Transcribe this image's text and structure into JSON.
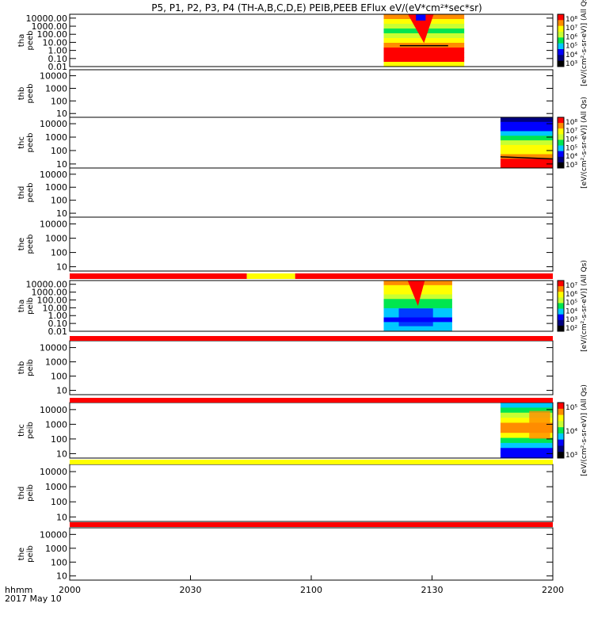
{
  "chart_data": {
    "type": "heatmap",
    "title": "P5, P1, P2, P3, P4 (TH-A,B,C,D,E) PEIB,PEEB EFlux eV/(eV*cm²*sec*sr)",
    "xaxis": {
      "range": [
        "2000",
        "2200"
      ],
      "ticks": [
        {
          "v": 0,
          "label": "2000"
        },
        {
          "v": 30,
          "label": "2030"
        },
        {
          "v": 60,
          "label": "2100"
        },
        {
          "v": 90,
          "label": "2130"
        },
        {
          "v": 120,
          "label": "2200"
        }
      ],
      "label": "hhmm",
      "date": "2017 May 10"
    },
    "panels": [
      {
        "id": "tha-peeb",
        "line1": "tha",
        "line2": "peeb",
        "ticks": [
          "10000.00",
          "1000.00",
          "100.00",
          "10.00",
          "1.00",
          "0.10",
          "0.01"
        ],
        "yrange": [
          0.01,
          30000
        ],
        "data_span": [
          78,
          98
        ],
        "colorbar": {
          "labels": [
            "10⁸",
            "10⁷",
            "10⁶",
            "10⁵",
            "10⁴",
            "10³"
          ],
          "unit": "[eV/(cm²-s-sr-eV)] (All Qs)"
        }
      },
      {
        "id": "thb-peeb",
        "line1": "thb",
        "line2": "peeb",
        "ticks": [
          "10000",
          "1000",
          "100",
          "10"
        ],
        "yrange": [
          5,
          30000
        ],
        "data_span": null
      },
      {
        "id": "thc-peeb",
        "line1": "thc",
        "line2": "peeb",
        "ticks": [
          "10000",
          "1000",
          "100",
          "10"
        ],
        "yrange": [
          5,
          30000
        ],
        "data_span": [
          107,
          120
        ],
        "colorbar": {
          "labels": [
            "10⁸",
            "10⁷",
            "10⁶",
            "10⁵",
            "10⁴",
            "10³"
          ],
          "unit": "[eV/(cm²-s-sr-eV)] (All Qs)"
        }
      },
      {
        "id": "thd-peeb",
        "line1": "thd",
        "line2": "peeb",
        "ticks": [
          "10000",
          "1000",
          "100",
          "10"
        ],
        "yrange": [
          5,
          30000
        ],
        "data_span": null
      },
      {
        "id": "the-peeb",
        "line1": "the",
        "line2": "peeb",
        "ticks": [
          "10000",
          "1000",
          "100",
          "10"
        ],
        "yrange": [
          5,
          30000
        ],
        "data_span": null
      },
      {
        "id": "tha-peib",
        "line1": "tha",
        "line2": "peib",
        "ticks": [
          "10000.00",
          "1000.00",
          "100.00",
          "10.00",
          "1.00",
          "0.10",
          "0.01"
        ],
        "yrange": [
          0.01,
          30000
        ],
        "data_span": [
          78,
          95
        ],
        "colorbar": {
          "labels": [
            "10⁷",
            "10⁶",
            "10⁵",
            "10⁴",
            "10³",
            "10²"
          ],
          "unit": "[eV/(cm²-s-sr-eV)] (All Qs)"
        }
      },
      {
        "id": "thb-peib",
        "line1": "thb",
        "line2": "peib",
        "ticks": [
          "10000",
          "1000",
          "100",
          "10"
        ],
        "yrange": [
          5,
          30000
        ],
        "data_span": null
      },
      {
        "id": "thc-peib",
        "line1": "thc",
        "line2": "peib",
        "ticks": [
          "10000",
          "1000",
          "100",
          "10"
        ],
        "yrange": [
          5,
          30000
        ],
        "data_span": [
          107,
          120
        ],
        "colorbar": {
          "labels": [
            "10⁵",
            "10⁴",
            "10³"
          ],
          "unit": "[eV/(cm²-s-sr-eV)] (All Qs)"
        }
      },
      {
        "id": "thd-peib",
        "line1": "thd",
        "line2": "peib",
        "ticks": [
          "10000",
          "1000",
          "100",
          "10"
        ],
        "yrange": [
          5,
          30000
        ],
        "data_span": null
      },
      {
        "id": "the-peib",
        "line1": "the",
        "line2": "peib",
        "ticks": [
          "10000",
          "1000",
          "100",
          "10"
        ],
        "yrange": [
          5,
          30000
        ],
        "data_span": null
      }
    ],
    "flag_bars": [
      {
        "segments": [
          {
            "from": 0,
            "to": 44,
            "color": "#ff0000"
          },
          {
            "from": 44,
            "to": 56,
            "color": "#ffff00"
          },
          {
            "from": 56,
            "to": 120,
            "color": "#ff0000"
          }
        ]
      },
      {
        "segments": [
          {
            "from": 0,
            "to": 120,
            "color": "#ff0000"
          }
        ]
      },
      {
        "segments": [
          {
            "from": 0,
            "to": 120,
            "color": "#ff0000"
          }
        ]
      },
      {
        "segments": [
          {
            "from": 0,
            "to": 120,
            "color": "#ffff00"
          }
        ]
      },
      {
        "segments": [
          {
            "from": 0,
            "to": 120,
            "color": "#ff0000"
          }
        ]
      }
    ],
    "colors": {
      "red": "#ff0000",
      "orange": "#ff8c00",
      "yellow": "#ffff00",
      "lightgreen": "#c8ff32",
      "green": "#00e650",
      "cyan": "#00c8ff",
      "blue": "#0000ff",
      "darkblue": "#000080",
      "black": "#000000"
    }
  }
}
